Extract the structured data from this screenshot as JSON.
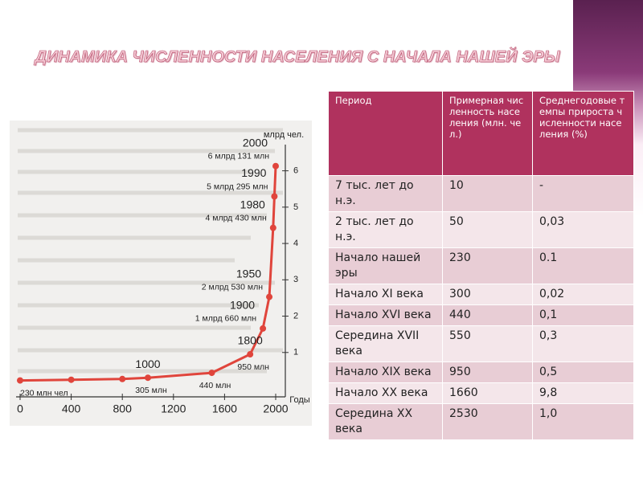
{
  "title": "ДИНАМИКА ЧИСЛЕННОСТИ НАСЕЛЕНИЯ С НАЧАЛА НАШЕЙ ЭРЫ",
  "figure": {
    "type": "line",
    "color": "#e0453c",
    "y_label": "млрд чел.",
    "x_label": "Годы",
    "x": [
      0,
      400,
      800,
      1000,
      1500,
      1800,
      1900,
      1950,
      1980,
      1990,
      2000
    ],
    "values": [
      0.23,
      0.25,
      0.27,
      0.305,
      0.44,
      0.95,
      1.66,
      2.53,
      4.43,
      5.295,
      6.131
    ],
    "value_labels": [
      "230 млн чел",
      null,
      null,
      "305 млн",
      "440 млн",
      "950 млн",
      "1 млрд 660 млн",
      "2 млрд 530 млн",
      "4 млрд 430 млн",
      "5 млрд 295 млн",
      "6 млрд 131 млн"
    ],
    "year_labels": [
      null,
      null,
      null,
      1000,
      null,
      1800,
      1900,
      1950,
      1980,
      1990,
      2000
    ],
    "xlim": [
      0,
      2000
    ],
    "xticks": [
      0,
      400,
      800,
      1200,
      1600,
      2000
    ],
    "ylim": [
      0,
      6.5
    ],
    "yticks": [
      1,
      2,
      3,
      4,
      5,
      6
    ]
  },
  "table": {
    "header": [
      "Период",
      "Примерная численность населения (млн. чел.)",
      "Среднегодовые темпы прироста численности населения (%)"
    ],
    "rows": [
      [
        "7 тыс. лет до н.э.",
        "10",
        "-"
      ],
      [
        "2 тыс. лет до н.э.",
        "50",
        "0,03"
      ],
      [
        "Начало нашей эры",
        "230",
        "0.1"
      ],
      [
        "Начало XI века",
        "300",
        "0,02"
      ],
      [
        "Начало XVI века",
        "440",
        "0,1"
      ],
      [
        "Середина XVII века",
        "550",
        "0,3"
      ],
      [
        "Начало XIX века",
        "950",
        "0,5"
      ],
      [
        "Начало XX века",
        "1660",
        "9,8"
      ],
      [
        "Середина XX века",
        "2530",
        "1,0"
      ]
    ]
  }
}
